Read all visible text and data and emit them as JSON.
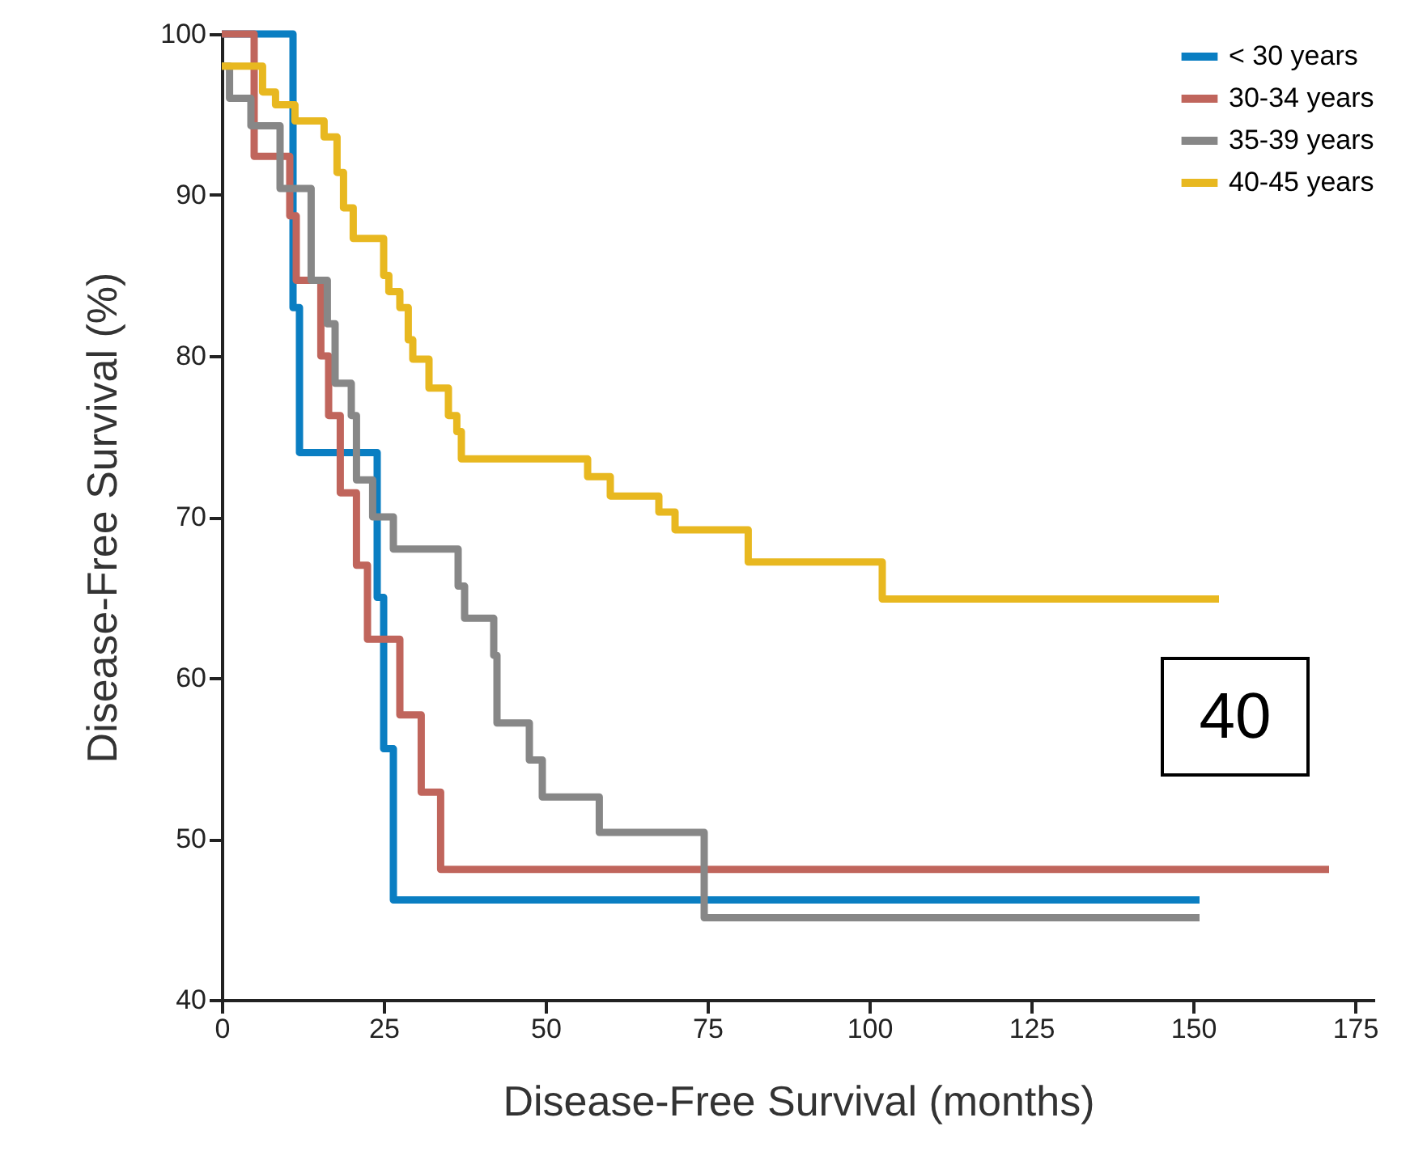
{
  "chart_data": {
    "type": "step",
    "xlabel": "Disease-Free Survival (months)",
    "ylabel": "Disease-Free Survival (%)",
    "xlim": [
      0,
      178
    ],
    "xticks": [
      0,
      25,
      50,
      75,
      100,
      125,
      150,
      175
    ],
    "ylim": [
      40,
      100
    ],
    "yticks": [
      40,
      50,
      60,
      70,
      80,
      90,
      100
    ],
    "grid": false,
    "legend": "top right",
    "line_style": "solid",
    "annotations": [
      "40"
    ],
    "series": [
      {
        "name": "< 30 years",
        "color": "#0a7ec2",
        "x": [
          0,
          11,
          12,
          24,
          25,
          26.5,
          151
        ],
        "values": [
          100,
          83,
          74,
          65,
          55.6,
          46.2,
          46.2
        ]
      },
      {
        "name": "30-34 years",
        "color": "#c0655c",
        "x": [
          0,
          5,
          10.5,
          11.5,
          15.3,
          16.5,
          18.3,
          20.8,
          22.5,
          27.5,
          30.8,
          33.8,
          171
        ],
        "values": [
          100,
          92.4,
          88.7,
          84.7,
          80,
          76.3,
          71.5,
          67,
          62.4,
          57.7,
          52.9,
          48.1,
          48.1
        ]
      },
      {
        "name": "35-39 years",
        "color": "#878787",
        "x": [
          0,
          1.2,
          4.5,
          9,
          13.8,
          16.3,
          17.5,
          20,
          20.8,
          23.3,
          26.5,
          36.5,
          37.5,
          42,
          42.5,
          47.5,
          49.5,
          58.3,
          74.5,
          151
        ],
        "values": [
          98,
          96,
          94.3,
          90.4,
          84.7,
          82,
          78.3,
          76.3,
          72.3,
          70,
          68,
          65.7,
          63.7,
          61.4,
          57.2,
          54.9,
          52.6,
          50.4,
          45.1,
          45.1
        ]
      },
      {
        "name": "40-45 years",
        "color": "#e8b820",
        "x": [
          0,
          6.3,
          8.3,
          11.3,
          15.8,
          17.8,
          18.8,
          20.3,
          25,
          25.8,
          27.5,
          28.8,
          29.5,
          32,
          35,
          36.3,
          37,
          56.5,
          60,
          67.5,
          70,
          81.3,
          102,
          154
        ],
        "values": [
          98,
          96.4,
          95.6,
          94.6,
          93.6,
          91.4,
          89.2,
          87.3,
          85,
          84,
          83,
          81,
          79.8,
          78,
          76.3,
          75.3,
          73.6,
          72.5,
          71.3,
          70.3,
          69.2,
          67.2,
          64.9,
          64.9
        ]
      }
    ]
  }
}
